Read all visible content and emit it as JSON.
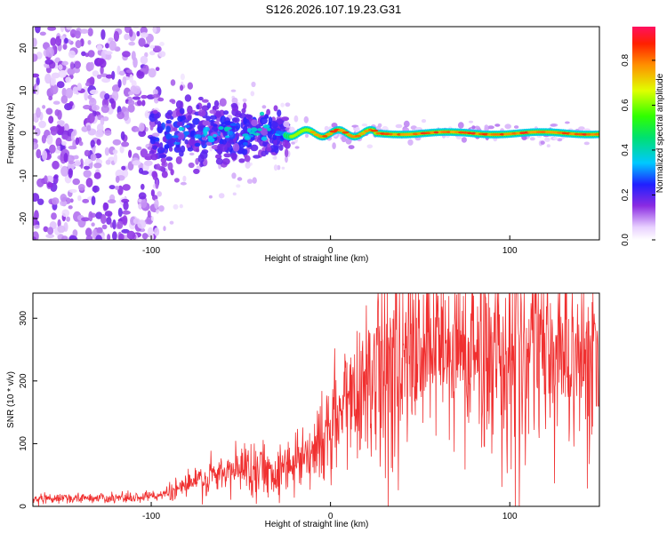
{
  "title": "S126.2026.107.19.23.G31",
  "chart_data": [
    {
      "type": "heatmap",
      "xlabel": "Height of straight line (km)",
      "ylabel": "Frequency (Hz)",
      "xlim": [
        -166,
        150
      ],
      "ylim": [
        -25,
        25
      ],
      "x_ticks": [
        -100,
        0,
        100
      ],
      "y_ticks": [
        -20,
        -10,
        0,
        10,
        20
      ],
      "colorbar": {
        "label": "Normalized spectral amplitude",
        "range": [
          0,
          0.95
        ],
        "ticks": [
          0.0,
          0.2,
          0.4,
          0.6,
          0.8
        ]
      },
      "description_points": [
        {
          "x_from": -166,
          "x_to": -100,
          "amplitude": 0.15,
          "freq_spread": 25
        },
        {
          "x_from": -100,
          "x_to": -25,
          "amplitude": 0.3,
          "freq_spread": 10
        },
        {
          "x_from": -25,
          "x_to": 150,
          "amplitude": 0.9,
          "freq_center": 0,
          "freq_spread": 1.5
        }
      ]
    },
    {
      "type": "line",
      "xlabel": "Height of straight line (km)",
      "ylabel": "SNR (10 * v/v)",
      "xlim": [
        -166,
        150
      ],
      "ylim": [
        0,
        340
      ],
      "x_ticks": [
        -100,
        0,
        100
      ],
      "y_ticks": [
        0,
        100,
        200,
        300
      ],
      "color": "#f03030",
      "envelope": {
        "x": [
          -166,
          -110,
          -95,
          -80,
          -60,
          -45,
          -30,
          -20,
          -10,
          0,
          10,
          20,
          30,
          50,
          80,
          110,
          140,
          150
        ],
        "y": [
          12,
          14,
          18,
          35,
          50,
          65,
          55,
          75,
          90,
          120,
          170,
          210,
          230,
          240,
          245,
          245,
          245,
          240
        ]
      }
    }
  ]
}
